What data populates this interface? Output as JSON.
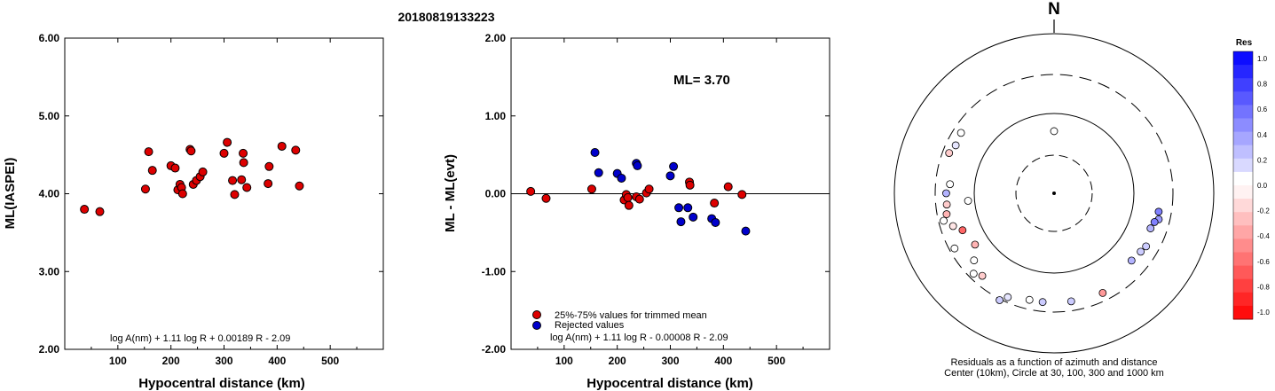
{
  "event_id": "20180819133223",
  "chart_data": [
    {
      "type": "scatter",
      "title": "",
      "xlabel": "Hypocentral distance (km)",
      "ylabel": "ML(IASPEI)",
      "xlim": [
        0,
        600
      ],
      "ylim": [
        2.0,
        6.0
      ],
      "x_ticks": [
        100,
        200,
        300,
        400,
        500
      ],
      "x_tick_labels": [
        "100",
        "200",
        "300",
        "400",
        "500"
      ],
      "y_ticks": [
        2.0,
        3.0,
        4.0,
        5.0,
        6.0
      ],
      "y_tick_labels": [
        "2.00",
        "3.00",
        "4.00",
        "5.00",
        "6.00"
      ],
      "formula": "log A(nm) + 1.11 log R + 0.00189 R - 2.09",
      "color": "#dd0000",
      "x": [
        37,
        66,
        152,
        158,
        165,
        200,
        208,
        213,
        217,
        220,
        222,
        236,
        238,
        242,
        248,
        255,
        260,
        300,
        306,
        316,
        320,
        333,
        336,
        337,
        343,
        383,
        385,
        409,
        435,
        442
      ],
      "y": [
        3.8,
        3.77,
        4.06,
        4.54,
        4.3,
        4.36,
        4.33,
        4.05,
        4.12,
        4.08,
        4.0,
        4.57,
        4.55,
        4.12,
        4.17,
        4.22,
        4.28,
        4.52,
        4.66,
        4.17,
        3.99,
        4.18,
        4.52,
        4.4,
        4.08,
        4.13,
        4.35,
        4.61,
        4.56,
        4.1
      ]
    },
    {
      "type": "scatter",
      "title": "",
      "xlabel": "Hypocentral distance (km)",
      "ylabel": "ML - ML(evt)",
      "xlim": [
        0,
        600
      ],
      "ylim": [
        -2.0,
        2.0
      ],
      "x_ticks": [
        100,
        200,
        300,
        400,
        500
      ],
      "x_tick_labels": [
        "100",
        "200",
        "300",
        "400",
        "500"
      ],
      "y_ticks": [
        -2.0,
        -1.0,
        0.0,
        1.0,
        2.0
      ],
      "y_tick_labels": [
        "-2.00",
        "-1.00",
        "0.00",
        "1.00",
        "2.00"
      ],
      "annotation": "ML= 3.70",
      "formula": "log A(nm) + 1.11 log R - 0.00008 R - 2.09",
      "reference_line": 0,
      "series": [
        {
          "name": "25%-75% values for trimmed mean",
          "color": "#dd0000",
          "x": [
            37,
            66,
            152,
            213,
            217,
            220,
            222,
            236,
            242,
            255,
            260,
            336,
            337,
            383,
            409,
            435
          ],
          "y": [
            0.03,
            -0.06,
            0.06,
            -0.08,
            -0.01,
            -0.05,
            -0.15,
            -0.04,
            -0.07,
            0.01,
            0.06,
            0.15,
            0.11,
            -0.12,
            0.09,
            -0.01
          ]
        },
        {
          "name": "Rejected values",
          "color": "#0000cc",
          "x": [
            158,
            165,
            200,
            208,
            236,
            238,
            300,
            306,
            316,
            320,
            333,
            343,
            378,
            385,
            442
          ],
          "y": [
            0.53,
            0.27,
            0.26,
            0.2,
            0.39,
            0.36,
            0.23,
            0.35,
            -0.18,
            -0.36,
            -0.18,
            -0.3,
            -0.32,
            -0.37,
            -0.48
          ]
        }
      ]
    },
    {
      "type": "scatter",
      "title": "",
      "north_label": "N",
      "caption_line1": "Residuals as a function of azimuth and distance",
      "caption_line2": "Center (10km), Circle at 30, 100, 300 and 1000 km",
      "colorbar_title": "Res",
      "colorbar_tick_labels": [
        "1.0",
        "0.8",
        "0.6",
        "0.4",
        "0.2",
        "0.0",
        "-0.2",
        "-0.4",
        "-0.6",
        "-0.8",
        "-1.0"
      ],
      "distance_circles_km": [
        30,
        100,
        300,
        1000
      ],
      "points": [
        {
          "azimuth_deg": 0,
          "residual": 0.0
        },
        {
          "azimuth_deg": 230,
          "residual": 0.0
        },
        {
          "azimuth_deg": 275,
          "residual": 0.0
        },
        {
          "azimuth_deg": 291,
          "residual": -0.2
        },
        {
          "azimuth_deg": 296,
          "residual": 0.1
        },
        {
          "azimuth_deg": 303,
          "residual": 0.0
        },
        {
          "azimuth_deg": 259,
          "residual": -0.3
        },
        {
          "azimuth_deg": 264,
          "residual": -0.2
        },
        {
          "azimuth_deg": 270,
          "residual": 0.3
        },
        {
          "azimuth_deg": 265,
          "residual": 0.0
        },
        {
          "azimuth_deg": 256,
          "residual": 0.0
        },
        {
          "azimuth_deg": 252,
          "residual": -0.1
        },
        {
          "azimuth_deg": 248,
          "residual": -0.6
        },
        {
          "azimuth_deg": 241,
          "residual": 0.0
        },
        {
          "azimuth_deg": 237,
          "residual": -0.3
        },
        {
          "azimuth_deg": 225,
          "residual": 0.0
        },
        {
          "azimuth_deg": 221,
          "residual": -0.2
        },
        {
          "azimuth_deg": 207,
          "residual": 0.2
        },
        {
          "azimuth_deg": 204,
          "residual": 0.1
        },
        {
          "azimuth_deg": 193,
          "residual": 0.0
        },
        {
          "azimuth_deg": 186,
          "residual": 0.2
        },
        {
          "azimuth_deg": 171,
          "residual": 0.2
        },
        {
          "azimuth_deg": 154,
          "residual": -0.4
        },
        {
          "azimuth_deg": 131,
          "residual": 0.3
        },
        {
          "azimuth_deg": 124,
          "residual": 0.2
        },
        {
          "azimuth_deg": 120,
          "residual": 0.2
        },
        {
          "azimuth_deg": 104,
          "residual": 0.4
        },
        {
          "azimuth_deg": 100,
          "residual": 0.5
        },
        {
          "azimuth_deg": 106,
          "residual": 0.5
        },
        {
          "azimuth_deg": 110,
          "residual": 0.3
        }
      ]
    }
  ]
}
